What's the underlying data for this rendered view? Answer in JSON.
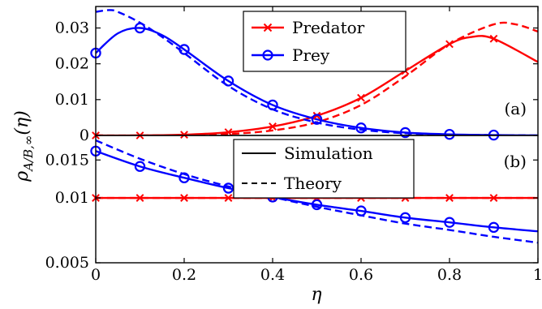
{
  "chart_data": [
    {
      "panel": "top",
      "type": "line",
      "panel_label": "(a)",
      "ylabel": "ρ_{A/B,∞}(η)",
      "xlim": [
        0,
        1
      ],
      "ylim": [
        0,
        0.036
      ],
      "yticks": [
        0,
        0.01,
        0.02,
        0.03
      ],
      "ytick_labels": [
        "0",
        "0.01",
        "0.02",
        "0.03"
      ],
      "grid": false,
      "legend": {
        "placement": "top-center",
        "entries": [
          {
            "label": "Predator",
            "color": "#ff0000",
            "marker": "x"
          },
          {
            "label": "Prey",
            "color": "#0000ff",
            "marker": "o"
          }
        ]
      },
      "series": [
        {
          "name": "Predator",
          "style": "solid",
          "color": "#ff0000",
          "marker": "x",
          "x": [
            0,
            0.1,
            0.2,
            0.3,
            0.4,
            0.5,
            0.6,
            0.7,
            0.8,
            0.85,
            0.9,
            1.0
          ],
          "y": [
            0.0,
            0.0,
            0.0002,
            0.0009,
            0.0025,
            0.0055,
            0.0105,
            0.018,
            0.0255,
            0.0275,
            0.027,
            0.0205
          ],
          "markers_x": [
            0,
            0.1,
            0.2,
            0.3,
            0.4,
            0.5,
            0.6,
            0.7,
            0.8,
            0.9
          ]
        },
        {
          "style": "dashed",
          "color": "#ff0000",
          "x": [
            0,
            0.1,
            0.2,
            0.3,
            0.4,
            0.5,
            0.6,
            0.7,
            0.8,
            0.9,
            0.95,
            1.0
          ],
          "y": [
            0.0,
            0.0,
            0.0001,
            0.0004,
            0.0014,
            0.0037,
            0.0085,
            0.0165,
            0.0255,
            0.031,
            0.031,
            0.029
          ]
        },
        {
          "name": "Prey",
          "style": "solid",
          "color": "#0000ff",
          "marker": "o",
          "x": [
            0,
            0.05,
            0.1,
            0.15,
            0.2,
            0.3,
            0.4,
            0.5,
            0.6,
            0.7,
            0.8,
            0.9,
            1.0
          ],
          "y": [
            0.023,
            0.0285,
            0.03,
            0.028,
            0.024,
            0.0152,
            0.0085,
            0.0045,
            0.0021,
            0.0008,
            0.0003,
            0.0001,
            0.0
          ],
          "markers_x": [
            0,
            0.1,
            0.2,
            0.3,
            0.4,
            0.5,
            0.6,
            0.7,
            0.8,
            0.9
          ]
        },
        {
          "style": "dashed",
          "color": "#0000ff",
          "x": [
            0,
            0.03,
            0.05,
            0.1,
            0.15,
            0.2,
            0.3,
            0.4,
            0.5,
            0.6,
            0.7,
            0.8,
            0.9,
            1.0
          ],
          "y": [
            0.0345,
            0.035,
            0.0345,
            0.0315,
            0.0275,
            0.023,
            0.0138,
            0.0073,
            0.0036,
            0.0016,
            0.0006,
            0.0002,
            0.0001,
            0.0
          ]
        }
      ]
    },
    {
      "panel": "bottom",
      "type": "line",
      "panel_label": "(b)",
      "xlabel": "η",
      "xlim": [
        0,
        1
      ],
      "ylim": [
        0.005,
        0.0195
      ],
      "yscale": "log",
      "xticks": [
        0,
        0.2,
        0.4,
        0.6,
        0.8,
        1
      ],
      "xtick_labels": [
        "0",
        "0.2",
        "0.4",
        "0.6",
        "0.8",
        "1"
      ],
      "yticks": [
        0.005,
        0.01,
        0.015
      ],
      "ytick_labels": [
        "0.005",
        "0.01",
        "0.015"
      ],
      "grid": false,
      "legend": {
        "placement": "top-center",
        "entries": [
          {
            "label": "Simulation",
            "style": "solid",
            "color": "#000000"
          },
          {
            "label": "Theory",
            "style": "dashed",
            "color": "#000000"
          }
        ]
      },
      "series": [
        {
          "style": "solid",
          "color": "#ff0000",
          "marker": "x",
          "x": [
            0,
            1.0
          ],
          "y": [
            0.01,
            0.01
          ],
          "markers_x": [
            0,
            0.1,
            0.2,
            0.3,
            0.4,
            0.5,
            0.6,
            0.7,
            0.8,
            0.9
          ]
        },
        {
          "style": "dashed",
          "color": "#ff0000",
          "x": [
            0,
            1.0
          ],
          "y": [
            0.01,
            0.01
          ]
        },
        {
          "style": "solid",
          "color": "#0000ff",
          "marker": "o",
          "x": [
            0,
            0.1,
            0.2,
            0.3,
            0.4,
            0.5,
            0.6,
            0.7,
            0.8,
            0.9,
            1.0
          ],
          "y": [
            0.0165,
            0.014,
            0.0124,
            0.0111,
            0.0101,
            0.0093,
            0.0087,
            0.0081,
            0.0077,
            0.0073,
            0.007
          ],
          "markers_x": [
            0,
            0.1,
            0.2,
            0.3,
            0.4,
            0.5,
            0.6,
            0.7,
            0.8,
            0.9
          ]
        },
        {
          "style": "dashed",
          "color": "#0000ff",
          "x": [
            0,
            0.1,
            0.2,
            0.3,
            0.4,
            0.5,
            0.6,
            0.7,
            0.8,
            0.9,
            1.0
          ],
          "y": [
            0.0185,
            0.0152,
            0.0129,
            0.0113,
            0.0101,
            0.0091,
            0.0083,
            0.0076,
            0.0071,
            0.0066,
            0.0062
          ]
        }
      ]
    }
  ]
}
